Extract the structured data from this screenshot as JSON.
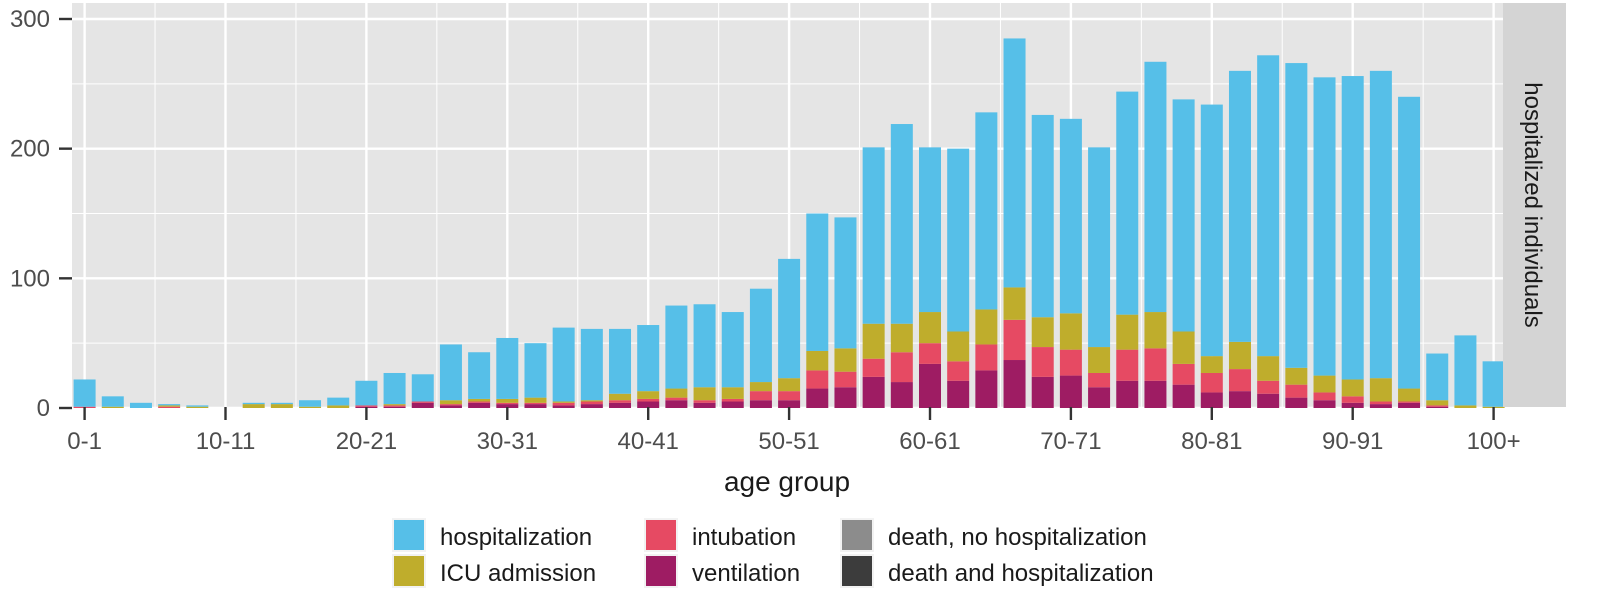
{
  "chart_data": {
    "type": "bar",
    "stacked": true,
    "xlabel": "age group",
    "ylabel": "",
    "ylim": [
      0,
      300
    ],
    "y_ticks": [
      0,
      100,
      200,
      300
    ],
    "x_tick_labels": [
      "0-1",
      "10-11",
      "20-21",
      "30-31",
      "40-41",
      "50-51",
      "60-61",
      "70-71",
      "80-81",
      "90-91",
      "100+"
    ],
    "facet_label": "hospitalized individuals",
    "grid": true,
    "legend_position": "bottom",
    "categories": [
      "0-1",
      "2-3",
      "4-5",
      "6-7",
      "8-9",
      "10-11",
      "12-13",
      "14-15",
      "16-17",
      "18-19",
      "20-21",
      "22-23",
      "24-25",
      "26-27",
      "28-29",
      "30-31",
      "32-33",
      "34-35",
      "36-37",
      "38-39",
      "40-41",
      "42-43",
      "44-45",
      "46-47",
      "48-49",
      "50-51",
      "52-53",
      "54-55",
      "56-57",
      "58-59",
      "60-61",
      "62-63",
      "64-65",
      "66-67",
      "68-69",
      "70-71",
      "72-73",
      "74-75",
      "76-77",
      "78-79",
      "80-81",
      "82-83",
      "84-85",
      "86-87",
      "88-89",
      "90-91",
      "92-93",
      "94-95",
      "96-97",
      "98-99",
      "100+"
    ],
    "series": [
      {
        "name": "ventilation",
        "color": "#9E1C63",
        "values": [
          0,
          0,
          0,
          0,
          0,
          0,
          0,
          0,
          0,
          0,
          1,
          1,
          4,
          2,
          4,
          3,
          3,
          2,
          3,
          4,
          5,
          6,
          4,
          5,
          6,
          6,
          15,
          16,
          24,
          20,
          34,
          21,
          29,
          37,
          24,
          25,
          16,
          21,
          21,
          18,
          12,
          13,
          11,
          8,
          6,
          4,
          3,
          4,
          1,
          0,
          0
        ]
      },
      {
        "name": "intubation",
        "color": "#E64A63",
        "values": [
          1,
          0,
          0,
          1,
          0,
          0,
          0,
          0,
          0,
          0,
          1,
          1,
          1,
          1,
          1,
          1,
          1,
          2,
          2,
          2,
          2,
          2,
          2,
          2,
          7,
          7,
          14,
          12,
          14,
          23,
          16,
          15,
          20,
          31,
          23,
          20,
          11,
          24,
          25,
          16,
          15,
          17,
          10,
          10,
          6,
          5,
          2,
          1,
          1,
          0,
          0
        ]
      },
      {
        "name": "ICU admission",
        "color": "#BFAD2C",
        "values": [
          0,
          1,
          0,
          1,
          1,
          0,
          3,
          3,
          1,
          2,
          0,
          1,
          0,
          3,
          2,
          3,
          4,
          1,
          1,
          5,
          6,
          7,
          10,
          9,
          7,
          10,
          15,
          18,
          27,
          22,
          24,
          23,
          27,
          25,
          23,
          28,
          20,
          27,
          28,
          25,
          13,
          21,
          19,
          13,
          13,
          13,
          18,
          10,
          4,
          2,
          1
        ]
      },
      {
        "name": "hospitalization",
        "color": "#56BFE8",
        "values": [
          21,
          8,
          4,
          1,
          1,
          0,
          1,
          1,
          5,
          6,
          19,
          24,
          21,
          43,
          36,
          47,
          42,
          57,
          55,
          50,
          51,
          64,
          64,
          58,
          72,
          92,
          106,
          101,
          136,
          154,
          127,
          141,
          152,
          192,
          156,
          150,
          154,
          172,
          193,
          179,
          194,
          209,
          232,
          235,
          230,
          234,
          237,
          225,
          36,
          54,
          35
        ]
      },
      {
        "name": "death, no hospitalization",
        "color": "#8C8C8C",
        "values": [
          0,
          0,
          0,
          0,
          0,
          0,
          0,
          0,
          0,
          0,
          0,
          0,
          0,
          0,
          0,
          0,
          0,
          0,
          0,
          0,
          0,
          0,
          0,
          0,
          0,
          0,
          0,
          0,
          0,
          0,
          0,
          0,
          0,
          0,
          0,
          0,
          0,
          0,
          0,
          0,
          0,
          0,
          0,
          0,
          0,
          0,
          0,
          0,
          0,
          0,
          0
        ]
      },
      {
        "name": "death and hospitalization",
        "color": "#3C3C3C",
        "values": [
          0,
          0,
          0,
          0,
          0,
          0,
          0,
          0,
          0,
          0,
          0,
          0,
          0,
          0,
          0,
          0,
          0,
          0,
          0,
          0,
          0,
          0,
          0,
          0,
          0,
          0,
          0,
          0,
          0,
          0,
          0,
          0,
          0,
          0,
          0,
          0,
          0,
          0,
          0,
          0,
          0,
          0,
          0,
          0,
          0,
          0,
          0,
          0,
          0,
          0,
          0
        ]
      }
    ],
    "legend": {
      "columns": [
        [
          "hospitalization",
          "ICU admission"
        ],
        [
          "intubation",
          "ventilation"
        ],
        [
          "death, no hospitalization",
          "death and hospitalization"
        ]
      ]
    }
  },
  "colors": {
    "panel_background": "#E5E5E5",
    "grid": "#FFFFFF",
    "strip_background": "#D4D4D4",
    "text": "#4D4D4D",
    "title_text": "#1A1A1A"
  }
}
